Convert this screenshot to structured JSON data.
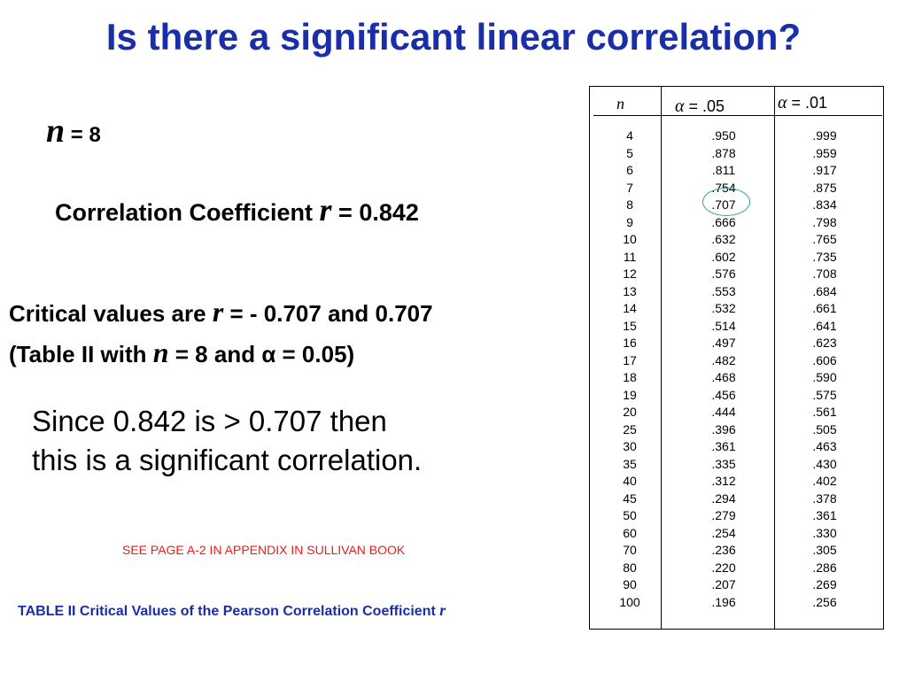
{
  "title": "Is there a significant linear correlation?",
  "n_line": {
    "symbol": "n",
    "rest": " = 8"
  },
  "correlation": {
    "label": "Correlation Coefficient ",
    "symbol": "r",
    "rest": " = 0.842"
  },
  "critical": {
    "line1_pre": "Critical values are ",
    "line1_symbol": "r",
    "line1_rest": " = - 0.707 and 0.707",
    "line2_pre": "(Table  II with ",
    "line2_symbol": "n",
    "line2_mid": " = 8 and ",
    "line2_alpha": "α",
    "line2_rest": " = 0.05)"
  },
  "conclusion": {
    "line1": "Since 0.842 is > 0.707 then",
    "line2": "this is a significant correlation."
  },
  "reference_note": "SEE PAGE A-2 IN APPENDIX IN SULLIVAN BOOK",
  "caption": {
    "text": "TABLE II Critical Values of the Pearson Correlation Coefficient ",
    "symbol": "r"
  },
  "table": {
    "headers": {
      "n": "n",
      "alpha_symbol": "α",
      "a05": " = .05",
      "a01": " = .01"
    },
    "rows": [
      [
        "4",
        ".950",
        ".999"
      ],
      [
        "5",
        ".878",
        ".959"
      ],
      [
        "6",
        ".811",
        ".917"
      ],
      [
        "7",
        ".754",
        ".875"
      ],
      [
        "8",
        ".707",
        ".834"
      ],
      [
        "9",
        ".666",
        ".798"
      ],
      [
        "10",
        ".632",
        ".765"
      ],
      [
        "11",
        ".602",
        ".735"
      ],
      [
        "12",
        ".576",
        ".708"
      ],
      [
        "13",
        ".553",
        ".684"
      ],
      [
        "14",
        ".532",
        ".661"
      ],
      [
        "15",
        ".514",
        ".641"
      ],
      [
        "16",
        ".497",
        ".623"
      ],
      [
        "17",
        ".482",
        ".606"
      ],
      [
        "18",
        ".468",
        ".590"
      ],
      [
        "19",
        ".456",
        ".575"
      ],
      [
        "20",
        ".444",
        ".561"
      ],
      [
        "25",
        ".396",
        ".505"
      ],
      [
        "30",
        ".361",
        ".463"
      ],
      [
        "35",
        ".335",
        ".430"
      ],
      [
        "40",
        ".312",
        ".402"
      ],
      [
        "45",
        ".294",
        ".378"
      ],
      [
        "50",
        ".279",
        ".361"
      ],
      [
        "60",
        ".254",
        ".330"
      ],
      [
        "70",
        ".236",
        ".305"
      ],
      [
        "80",
        ".220",
        ".286"
      ],
      [
        "90",
        ".207",
        ".269"
      ],
      [
        "100",
        ".196",
        ".256"
      ]
    ],
    "highlight_color": "#2aa79b"
  },
  "colors": {
    "title": "#1a2ea8",
    "note": "#e8201a",
    "caption": "#1a2ea8"
  }
}
